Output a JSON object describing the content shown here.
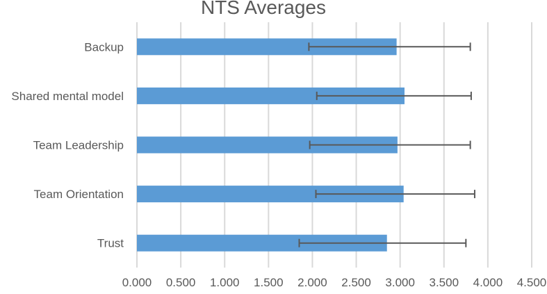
{
  "chart_data": {
    "type": "bar",
    "orientation": "horizontal",
    "title": "NTS Averages",
    "xlabel": "",
    "ylabel": "",
    "xlim": [
      0,
      4.5
    ],
    "x_ticks": [
      "0.000",
      "0.500",
      "1.000",
      "1.500",
      "2.000",
      "2.500",
      "3.000",
      "3.500",
      "4.000",
      "4.500"
    ],
    "categories": [
      "Backup",
      "Shared mental model",
      "Team Leadership",
      "Team Orientation",
      "Trust"
    ],
    "values": [
      2.96,
      3.05,
      2.97,
      3.04,
      2.85
    ],
    "error_low": [
      1.96,
      2.05,
      1.97,
      2.04,
      1.85
    ],
    "error_high": [
      3.8,
      3.81,
      3.8,
      3.85,
      3.75
    ],
    "grid": "vertical",
    "bar_color": "#5b9bd5",
    "grid_color": "#d9d9d9",
    "error_bar_color": "#595959",
    "text_color": "#595959"
  }
}
